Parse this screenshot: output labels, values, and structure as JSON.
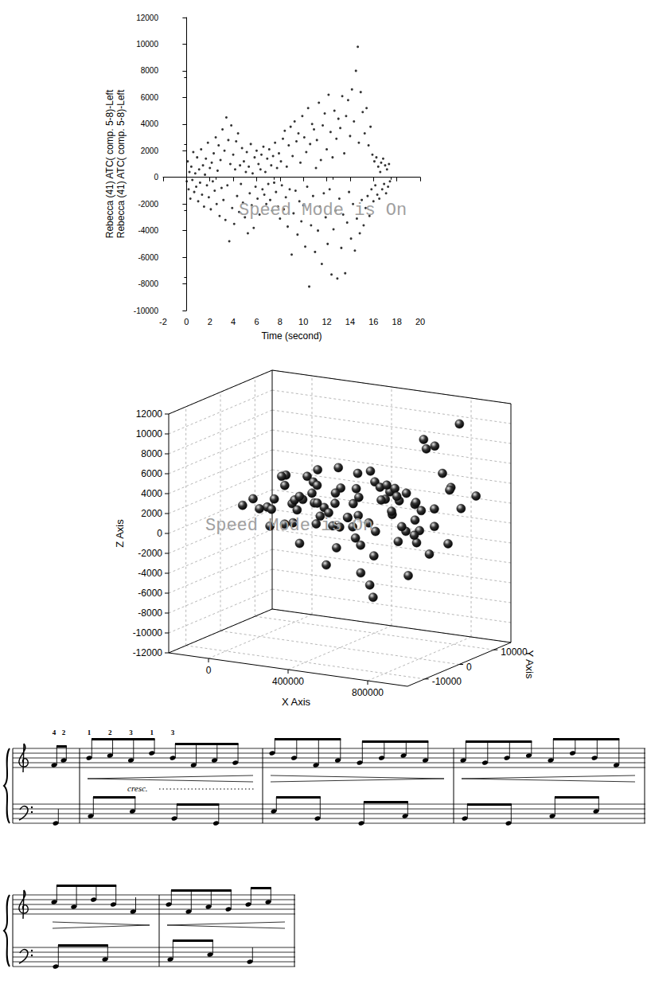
{
  "chart_data": [
    {
      "type": "scatter",
      "ylabel": [
        "Rebecca (41) ATC( comp. 5-8)-Left",
        "Rebecca (41) ATC( comp. 5-8)-Left"
      ],
      "xlabel": "Time (second)",
      "annotations": [
        "Speed Mode is On"
      ],
      "x": [
        0.02,
        0.1,
        0.18,
        0.25,
        0.33,
        0.41,
        0.5,
        0.58,
        0.66,
        0.75,
        0.83,
        0.91,
        1,
        1.08,
        1.16,
        1.25,
        1.33,
        1.41,
        1.5,
        1.58,
        1.66,
        1.75,
        1.83,
        1.91,
        2,
        2.08,
        2.16,
        2.25,
        2.33,
        2.41,
        2.5,
        2.58,
        2.66,
        2.75,
        2.83,
        2.91,
        3,
        3.08,
        3.16,
        3.25,
        3.33,
        3.41,
        3.5,
        3.58,
        3.66,
        3.75,
        3.83,
        3.91,
        4,
        4.08,
        4.16,
        4.25,
        4.33,
        4.41,
        4.5,
        4.58,
        4.66,
        4.75,
        4.83,
        4.91,
        5,
        5.08,
        5.16,
        5.25,
        5.33,
        5.41,
        5.5,
        5.58,
        5.66,
        5.75,
        5.83,
        5.91,
        6,
        6.08,
        6.16,
        6.25,
        6.33,
        6.41,
        6.5,
        6.58,
        6.66,
        6.75,
        6.83,
        6.91,
        7,
        7.08,
        7.16,
        7.25,
        7.33,
        7.41,
        7.5,
        7.58,
        7.66,
        7.75,
        7.83,
        7.91,
        8,
        8.08,
        8.16,
        8.25,
        8.33,
        8.41,
        8.5,
        8.58,
        8.66,
        8.75,
        8.83,
        8.91,
        9,
        9.08,
        9.16,
        9.25,
        9.33,
        9.41,
        9.5,
        9.58,
        9.66,
        9.75,
        9.83,
        9.91,
        10,
        10.08,
        10.16,
        10.25,
        10.33,
        10.41,
        10.5,
        10.58,
        10.66,
        10.75,
        10.83,
        10.91,
        11,
        11.08,
        11.16,
        11.25,
        11.33,
        11.41,
        11.5,
        11.58,
        11.66,
        11.75,
        11.83,
        11.91,
        12,
        12.08,
        12.16,
        12.25,
        12.33,
        12.41,
        12.5,
        12.58,
        12.66,
        12.75,
        12.83,
        12.91,
        13,
        13.08,
        13.16,
        13.25,
        13.33,
        13.41,
        13.5,
        13.58,
        13.66,
        13.75,
        13.83,
        13.91,
        14,
        14.08,
        14.16,
        14.25,
        14.33,
        14.41,
        14.5,
        14.58,
        14.66,
        14.75,
        14.83,
        14.91,
        15,
        15.08,
        15.16,
        15.25,
        15.33,
        15.41,
        15.5,
        15.58,
        15.66,
        15.75,
        15.83,
        15.91,
        16,
        16.08,
        16.16,
        16.25,
        16.33,
        16.41,
        16.5,
        16.58,
        16.66,
        16.75,
        16.83,
        16.91,
        17,
        17.08,
        17.16,
        17.25,
        17.33,
        17.41
      ],
      "values": [
        -300,
        1200,
        -900,
        400,
        -1600,
        800,
        -200,
        1900,
        -1100,
        300,
        -700,
        1500,
        -1800,
        600,
        -400,
        2100,
        -1300,
        900,
        -2200,
        200,
        1400,
        -600,
        2600,
        -1500,
        700,
        -2400,
        1100,
        -300,
        1800,
        -1000,
        3000,
        -2000,
        500,
        2400,
        -2900,
        1300,
        -800,
        3600,
        -1700,
        2000,
        -3200,
        4500,
        -600,
        2800,
        -4800,
        1000,
        3900,
        -2300,
        1700,
        -3500,
        600,
        2700,
        -1400,
        3300,
        -2600,
        900,
        -500,
        2200,
        -1900,
        1200,
        -3000,
        400,
        1900,
        -4200,
        800,
        -1200,
        2500,
        -2100,
        300,
        -3800,
        1500,
        -700,
        2000,
        -1600,
        1000,
        -2800,
        600,
        1700,
        -900,
        2300,
        -1300,
        400,
        -2000,
        1400,
        -500,
        2100,
        -1700,
        900,
        -2500,
        1600,
        -400,
        2600,
        -1100,
        700,
        -2200,
        1800,
        -3100,
        1200,
        -600,
        2900,
        -2400,
        3500,
        -1500,
        800,
        -3700,
        2400,
        -900,
        3800,
        -5800,
        1600,
        -2700,
        4200,
        -1000,
        2700,
        -4300,
        3300,
        -1800,
        1100,
        -3300,
        4600,
        -2100,
        3000,
        -5200,
        1900,
        -700,
        5200,
        -8200,
        2500,
        -3600,
        4000,
        -1400,
        3600,
        -5600,
        700,
        2800,
        -4000,
        5600,
        -2200,
        1300,
        -6500,
        3900,
        -1200,
        4800,
        -3000,
        2100,
        -5000,
        6200,
        -900,
        3400,
        -7300,
        1500,
        -3900,
        5000,
        -2500,
        2900,
        -7600,
        4400,
        -1600,
        3700,
        -5300,
        6100,
        -2800,
        1800,
        -7200,
        4600,
        -3400,
        5800,
        -1100,
        3100,
        -4600,
        6600,
        -2000,
        4200,
        -5500,
        8000,
        -3100,
        9800,
        2600,
        -4200,
        6400,
        -1700,
        4900,
        -3600,
        3300,
        -2300,
        5200,
        -1400,
        2400,
        -2900,
        3800,
        -900,
        1700,
        -1800,
        1200,
        -600,
        1500,
        -1300,
        800,
        -1600,
        400,
        1100,
        -900,
        1400,
        -500,
        900,
        -1200,
        600,
        -700,
        1000,
        -300
      ],
      "color": "#000000",
      "marker": "dot",
      "xlim": [
        -2,
        20
      ],
      "xticks": [
        -2,
        0,
        2,
        4,
        6,
        8,
        10,
        12,
        14,
        16,
        18,
        20
      ],
      "ylim": [
        -10000,
        12000
      ],
      "yticks": [
        -10000,
        -8000,
        -6000,
        -4000,
        -2000,
        0,
        2000,
        4000,
        6000,
        8000,
        10000,
        12000
      ],
      "grid": false
    },
    {
      "type": "scatter3d",
      "xlabel": "X Axis",
      "ylabel": "Y Axis",
      "zlabel": "Z Axis",
      "annotations": [
        "Speed Mode is On"
      ],
      "x": [
        50000,
        60000,
        70000,
        80000,
        90000,
        100000,
        110000,
        120000,
        130000,
        140000,
        150000,
        160000,
        170000,
        180000,
        190000,
        200000,
        210000,
        220000,
        230000,
        240000,
        250000,
        260000,
        270000,
        280000,
        290000,
        300000,
        310000,
        320000,
        330000,
        340000,
        350000,
        360000,
        370000,
        380000,
        390000,
        400000,
        410000,
        420000,
        430000,
        440000,
        450000,
        460000,
        470000,
        480000,
        490000,
        500000,
        510000,
        520000,
        530000,
        540000,
        550000,
        560000,
        570000,
        580000,
        590000,
        600000,
        610000,
        620000,
        630000,
        640000,
        650000,
        660000,
        670000,
        680000,
        690000,
        700000,
        710000,
        720000,
        730000,
        740000,
        750000,
        760000,
        770000,
        780000,
        790000,
        800000,
        810000,
        820000,
        830000,
        840000,
        850000,
        860000,
        870000,
        880000,
        890000,
        900000,
        910000,
        920000,
        930000,
        940000
      ],
      "y": [
        -8000,
        4000,
        -2000,
        9000,
        1000,
        -6000,
        6000,
        -9000,
        2000,
        -4000,
        8000,
        0,
        -7000,
        5000,
        -1000,
        7000,
        -5000,
        3000,
        -10000,
        9500,
        -3000,
        1500,
        -8500,
        6500,
        -500,
        4500,
        -6500,
        8500,
        -2500,
        2500,
        -9500,
        7500,
        -1500,
        3500,
        -7500,
        5500,
        -4500,
        9000,
        500,
        -8000,
        6000,
        -3500,
        2000,
        -6000,
        8000,
        -1000,
        4000,
        -9000,
        7000,
        -2000,
        3000,
        -5500,
        9500,
        -500,
        5000,
        -7000,
        1500,
        -4000,
        8500,
        -8500,
        2500,
        -3000,
        6500,
        -6500,
        500,
        4500,
        -9500,
        7500,
        -2500,
        3500,
        -5000,
        9000,
        -1500,
        5500,
        -7500,
        2000,
        -4500,
        8000,
        -500,
        6000,
        -8000,
        1000,
        -3500,
        7000,
        -6000,
        3000,
        -2000,
        9500,
        -9000,
        4000
      ],
      "z": [
        2500,
        3800,
        1500,
        3000,
        4200,
        2000,
        1200,
        3500,
        -500,
        2800,
        4000,
        1800,
        600,
        3300,
        2400,
        500,
        4500,
        1600,
        2900,
        2200,
        -1500,
        3700,
        1300,
        4800,
        200,
        2600,
        3900,
        1000,
        2700,
        -2500,
        3100,
        4300,
        1700,
        500,
        4600,
        2300,
        -3000,
        3400,
        1100,
        2500,
        5000,
        800,
        -1800,
        3600,
        2000,
        4400,
        -600,
        1900,
        3000,
        -3800,
        4100,
        1400,
        2600,
        -2200,
        3800,
        600,
        4700,
        -4500,
        1800,
        3200,
        -1000,
        4000,
        2400,
        -5200,
        3500,
        1000,
        2800,
        -2800,
        4500,
        200,
        3100,
        5200,
        -3500,
        2200,
        3900,
        8800,
        1500,
        4100,
        10200,
        -1200,
        2600,
        9400,
        3600,
        10800,
        800,
        4800,
        1900,
        3300,
        2100,
        2900
      ],
      "color": "#333333",
      "marker": "sphere",
      "xlim": [
        -200000,
        1000000
      ],
      "xticks": [
        0,
        400000,
        800000
      ],
      "ylim": [
        -15000,
        15000
      ],
      "yticks": [
        -10000,
        0,
        10000
      ],
      "zlim": [
        -12000,
        12000
      ],
      "zticks": [
        -12000,
        -10000,
        -8000,
        -6000,
        -4000,
        -2000,
        0,
        2000,
        4000,
        6000,
        8000,
        10000,
        12000
      ],
      "grid": true
    }
  ],
  "music": {
    "annotations": [
      "cresc."
    ],
    "fingerings": [
      "4",
      "2",
      "1",
      "2",
      "3",
      "1",
      "3"
    ]
  }
}
